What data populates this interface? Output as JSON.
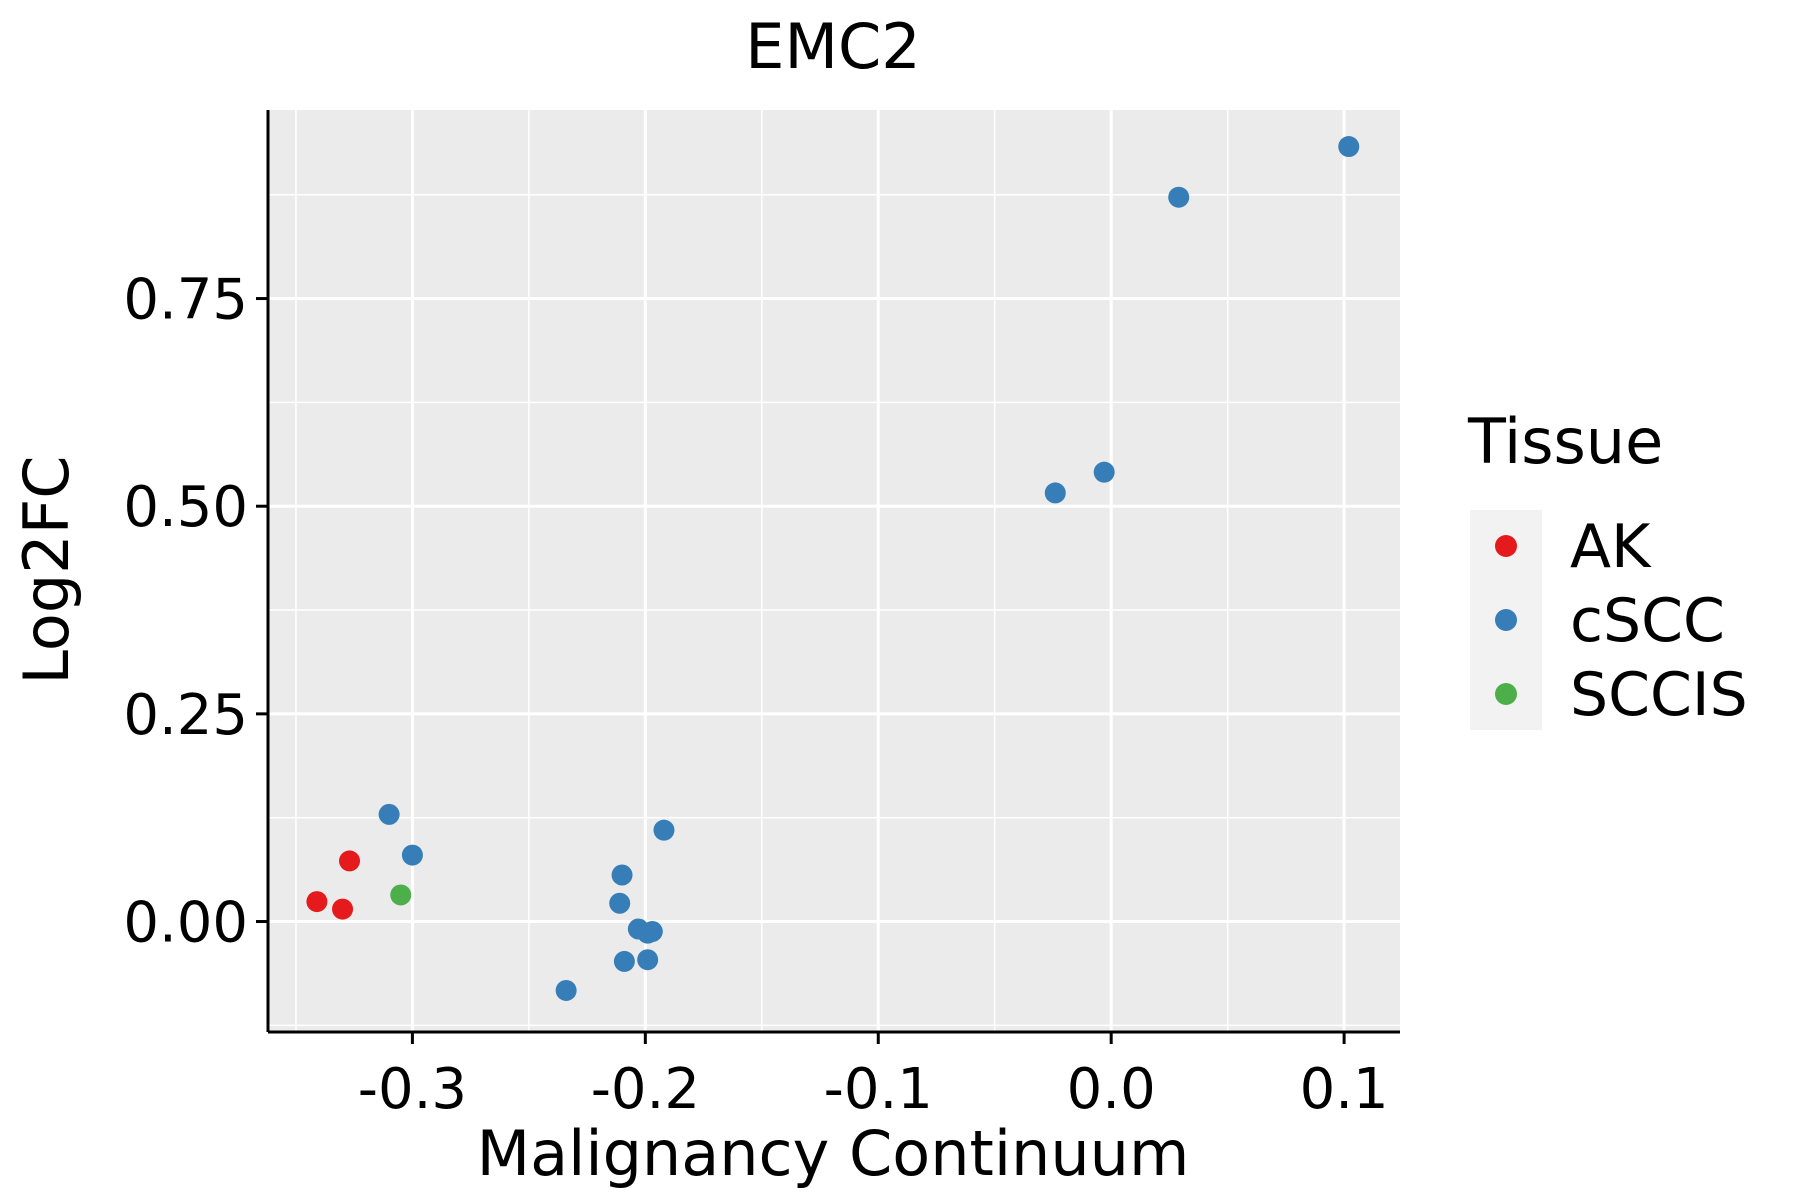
{
  "chart_data": {
    "type": "scatter",
    "title": "EMC2",
    "xlabel": "Malignancy Continuum",
    "ylabel": "Log2FC",
    "xlim": [
      -0.362,
      0.124
    ],
    "ylim": [
      -0.133,
      0.977
    ],
    "x_ticks": [
      -0.3,
      -0.2,
      -0.1,
      0.0,
      0.1
    ],
    "x_tick_labels": [
      "-0.3",
      "-0.2",
      "-0.1",
      "0.0",
      "0.1"
    ],
    "y_ticks": [
      0.0,
      0.25,
      0.5,
      0.75
    ],
    "y_tick_labels": [
      "0.00",
      "0.25",
      "0.50",
      "0.75"
    ],
    "grid": true,
    "legend": {
      "title": "Tissue",
      "position": "right",
      "entries": [
        {
          "label": "AK",
          "color": "#E41A1C"
        },
        {
          "label": "cSCC",
          "color": "#377EB8"
        },
        {
          "label": "SCCIS",
          "color": "#4DAF4A"
        }
      ]
    },
    "series": [
      {
        "name": "AK",
        "color": "#E41A1C",
        "points": [
          {
            "x": -0.341,
            "y": 0.024
          },
          {
            "x": -0.33,
            "y": 0.015
          },
          {
            "x": -0.327,
            "y": 0.073
          }
        ]
      },
      {
        "name": "cSCC",
        "color": "#377EB8",
        "points": [
          {
            "x": -0.31,
            "y": 0.129
          },
          {
            "x": -0.3,
            "y": 0.08
          },
          {
            "x": -0.234,
            "y": -0.083
          },
          {
            "x": -0.21,
            "y": 0.056
          },
          {
            "x": -0.211,
            "y": 0.022
          },
          {
            "x": -0.209,
            "y": -0.048
          },
          {
            "x": -0.203,
            "y": -0.009
          },
          {
            "x": -0.199,
            "y": -0.014
          },
          {
            "x": -0.197,
            "y": -0.012
          },
          {
            "x": -0.199,
            "y": -0.046
          },
          {
            "x": -0.192,
            "y": 0.11
          },
          {
            "x": -0.024,
            "y": 0.516
          },
          {
            "x": -0.003,
            "y": 0.541
          },
          {
            "x": 0.029,
            "y": 0.872
          },
          {
            "x": 0.102,
            "y": 0.933
          }
        ]
      },
      {
        "name": "SCCIS",
        "color": "#4DAF4A",
        "points": [
          {
            "x": -0.305,
            "y": 0.032
          }
        ]
      }
    ]
  },
  "colors": {
    "panel_background": "#EBEBEB",
    "grid_line": "#FFFFFF",
    "axis_line": "#000000",
    "legend_key_background": "#F2F2F2"
  }
}
